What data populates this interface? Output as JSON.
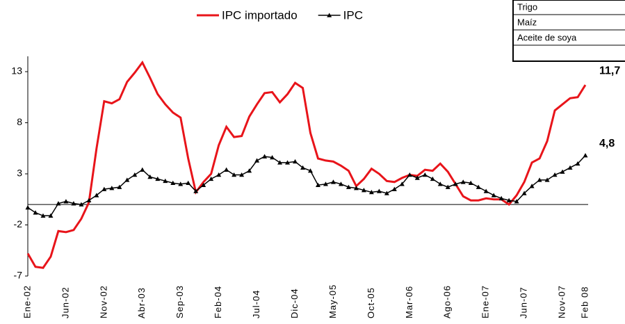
{
  "chart_data": {
    "type": "line",
    "categories": [
      "Ene-02",
      null,
      null,
      null,
      null,
      "Jun-02",
      null,
      null,
      null,
      null,
      "Nov-02",
      null,
      null,
      null,
      null,
      "Abr-03",
      null,
      null,
      null,
      null,
      "Sep-03",
      null,
      null,
      null,
      null,
      "Feb-04",
      null,
      null,
      null,
      null,
      "Jul-04",
      null,
      null,
      null,
      null,
      "Dic-04",
      null,
      null,
      null,
      null,
      "May-05",
      null,
      null,
      null,
      null,
      "Oct-05",
      null,
      null,
      null,
      null,
      "Mar-06",
      null,
      null,
      null,
      null,
      "Ago-06",
      null,
      null,
      null,
      null,
      "Ene-07",
      null,
      null,
      null,
      null,
      "Jun-07",
      null,
      null,
      null,
      null,
      "Nov-07",
      null,
      null,
      "Feb 08"
    ],
    "series": [
      {
        "name": "IPC importado",
        "color": "#e8141a",
        "marker": "none",
        "values": [
          -4.8,
          -6.1,
          -6.2,
          -5.1,
          -2.6,
          -2.7,
          -2.5,
          -1.4,
          0.2,
          5.5,
          10.1,
          9.9,
          10.3,
          12.0,
          12.9,
          13.9,
          12.4,
          10.8,
          9.8,
          9.0,
          8.5,
          4.5,
          1.2,
          2.2,
          3.0,
          5.8,
          7.6,
          6.6,
          6.7,
          8.6,
          9.8,
          10.9,
          11.0,
          10.0,
          10.8,
          11.9,
          11.4,
          7.0,
          4.5,
          4.3,
          4.2,
          3.8,
          3.3,
          1.8,
          2.5,
          3.5,
          3.0,
          2.3,
          2.2,
          2.6,
          2.9,
          2.8,
          3.4,
          3.3,
          4.0,
          3.2,
          2.0,
          0.8,
          0.4,
          0.4,
          0.6,
          0.5,
          0.5,
          0.0,
          0.9,
          2.2,
          4.1,
          4.5,
          6.2,
          9.2,
          9.8,
          10.4,
          10.5,
          11.7
        ]
      },
      {
        "name": "IPC",
        "color": "#000000",
        "marker": "triangle",
        "values": [
          -0.3,
          -0.8,
          -1.1,
          -1.1,
          0.1,
          0.3,
          0.1,
          0.0,
          0.4,
          0.9,
          1.5,
          1.6,
          1.7,
          2.4,
          2.9,
          3.4,
          2.7,
          2.5,
          2.3,
          2.1,
          2.0,
          2.1,
          1.3,
          1.9,
          2.5,
          2.9,
          3.4,
          2.9,
          2.9,
          3.3,
          4.3,
          4.7,
          4.6,
          4.1,
          4.1,
          4.2,
          3.6,
          3.3,
          1.9,
          2.0,
          2.2,
          2.0,
          1.7,
          1.6,
          1.4,
          1.2,
          1.3,
          1.1,
          1.5,
          2.0,
          2.9,
          2.6,
          2.9,
          2.5,
          2.0,
          1.7,
          2.0,
          2.2,
          2.1,
          1.7,
          1.3,
          0.9,
          0.6,
          0.4,
          0.3,
          1.1,
          1.8,
          2.4,
          2.4,
          2.9,
          3.2,
          3.6,
          4.0,
          4.8
        ]
      }
    ],
    "annotations": [
      "11,7",
      "4,8"
    ],
    "ylim": [
      -7,
      14.5
    ],
    "yticks": [
      13,
      8,
      3,
      -2,
      -7
    ],
    "legend": "top"
  },
  "table": {
    "rows": [
      "Trigo",
      "Maíz",
      "Aceite de soya"
    ]
  }
}
